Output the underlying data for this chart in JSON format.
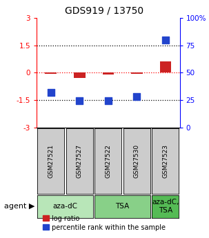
{
  "title": "GDS919 / 13750",
  "samples": [
    "GSM27521",
    "GSM27527",
    "GSM27522",
    "GSM27530",
    "GSM27523"
  ],
  "log_ratio": [
    -0.07,
    -0.3,
    -0.1,
    -0.07,
    0.6
  ],
  "percentile_rank": [
    32,
    24,
    24,
    28,
    80
  ],
  "ylim_left": [
    -3,
    3
  ],
  "ylim_right": [
    0,
    100
  ],
  "yticks_left": [
    -3,
    -1.5,
    0,
    1.5,
    3
  ],
  "yticks_right": [
    0,
    25,
    50,
    75,
    100
  ],
  "ytick_labels_left": [
    "-3",
    "-1.5",
    "0",
    "1.5",
    "3"
  ],
  "ytick_labels_right": [
    "0",
    "25",
    "50",
    "75",
    "100%"
  ],
  "bar_color": "#cc2222",
  "dot_color": "#2244cc",
  "agent_groups": [
    {
      "label": "aza-dC",
      "span": [
        0,
        2
      ],
      "color": "#b8e6b8"
    },
    {
      "label": "TSA",
      "span": [
        2,
        4
      ],
      "color": "#88d088"
    },
    {
      "label": "aza-dC,\nTSA",
      "span": [
        4,
        5
      ],
      "color": "#55bb55"
    }
  ],
  "legend_bar_label": "log ratio",
  "legend_dot_label": "percentile rank within the sample",
  "bar_width": 0.4,
  "dot_size": 50,
  "sample_box_color": "#cccccc",
  "title_fontsize": 10,
  "tick_fontsize": 7.5,
  "sample_fontsize": 6.5,
  "agent_fontsize": 7.5,
  "legend_fontsize": 7
}
